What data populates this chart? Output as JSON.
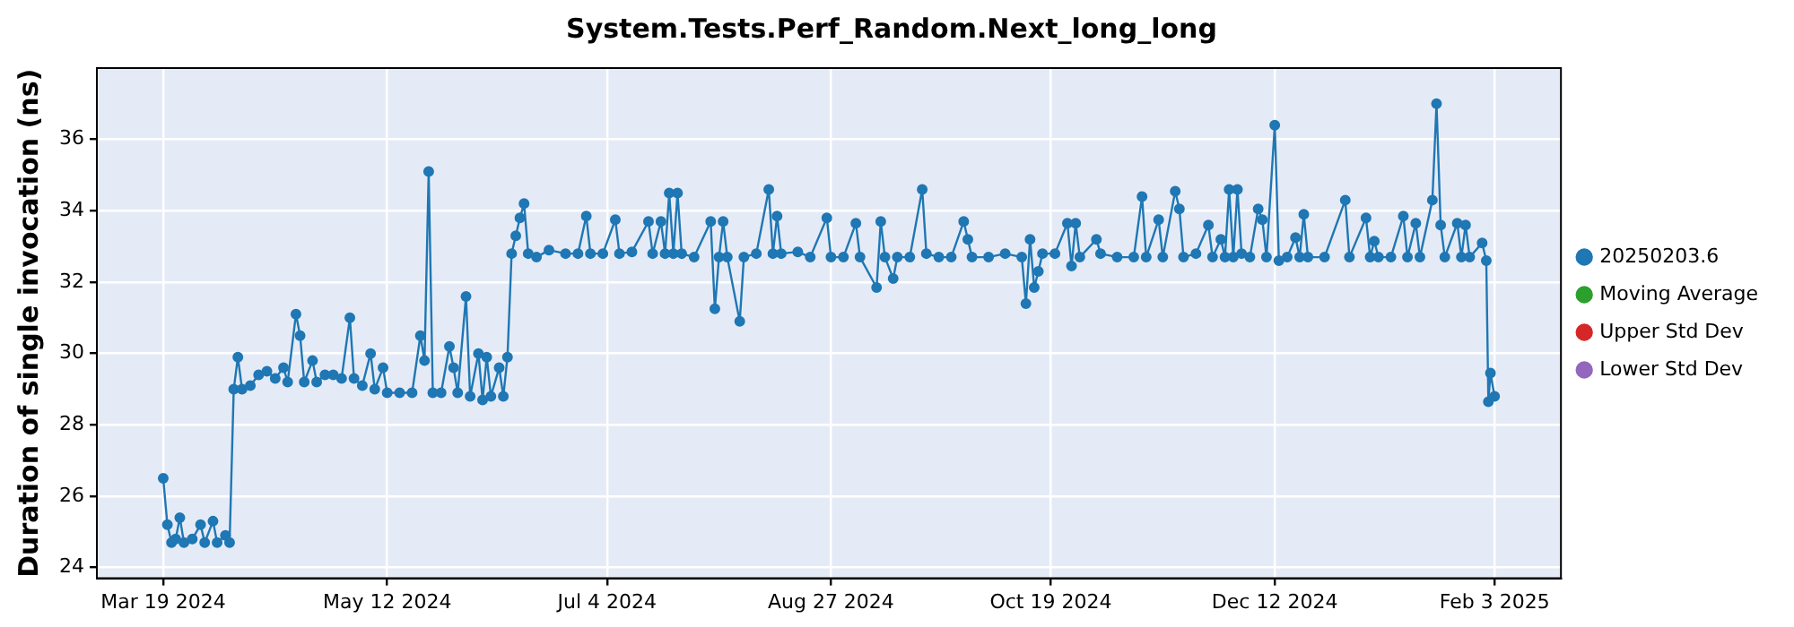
{
  "chart_data": {
    "type": "line",
    "title": "System.Tests.Perf_Random.Next_long_long",
    "ylabel": "Duration of single invocation (ns)",
    "xlim": [
      "2024-03-03",
      "2025-02-19"
    ],
    "xticks": [
      {
        "value": "2024-03-19",
        "label": "Mar 19 2024"
      },
      {
        "value": "2024-05-12",
        "label": "May 12 2024"
      },
      {
        "value": "2024-07-04",
        "label": "Jul 4 2024"
      },
      {
        "value": "2024-08-27",
        "label": "Aug 27 2024"
      },
      {
        "value": "2024-10-19",
        "label": "Oct 19 2024"
      },
      {
        "value": "2024-12-12",
        "label": "Dec 12 2024"
      },
      {
        "value": "2025-02-03",
        "label": "Feb 3 2025"
      }
    ],
    "ylim": [
      23.7,
      38
    ],
    "yticks": [
      24,
      26,
      28,
      30,
      32,
      34,
      36
    ],
    "grid": true,
    "legend": "right",
    "marker": "circle",
    "line_style": "solid",
    "series": [
      {
        "name": "20250203.6",
        "color": "#1f77b4",
        "x": [
          "2024-03-19",
          "2024-03-20",
          "2024-03-21",
          "2024-03-22",
          "2024-03-23",
          "2024-03-24",
          "2024-03-26",
          "2024-03-28",
          "2024-03-29",
          "2024-03-31",
          "2024-04-01",
          "2024-04-03",
          "2024-04-04",
          "2024-04-05",
          "2024-04-06",
          "2024-04-07",
          "2024-04-09",
          "2024-04-11",
          "2024-04-13",
          "2024-04-15",
          "2024-04-17",
          "2024-04-18",
          "2024-04-20",
          "2024-04-21",
          "2024-04-22",
          "2024-04-24",
          "2024-04-25",
          "2024-04-27",
          "2024-04-29",
          "2024-05-01",
          "2024-05-03",
          "2024-05-04",
          "2024-05-06",
          "2024-05-08",
          "2024-05-09",
          "2024-05-11",
          "2024-05-12",
          "2024-05-15",
          "2024-05-18",
          "2024-05-20",
          "2024-05-21",
          "2024-05-22",
          "2024-05-23",
          "2024-05-25",
          "2024-05-27",
          "2024-05-28",
          "2024-05-29",
          "2024-05-31",
          "2024-06-01",
          "2024-06-03",
          "2024-06-04",
          "2024-06-05",
          "2024-06-06",
          "2024-06-08",
          "2024-06-09",
          "2024-06-10",
          "2024-06-11",
          "2024-06-12",
          "2024-06-13",
          "2024-06-14",
          "2024-06-15",
          "2024-06-17",
          "2024-06-20",
          "2024-06-24",
          "2024-06-27",
          "2024-06-29",
          "2024-06-30",
          "2024-07-03",
          "2024-07-06",
          "2024-07-07",
          "2024-07-10",
          "2024-07-14",
          "2024-07-15",
          "2024-07-17",
          "2024-07-18",
          "2024-07-19",
          "2024-07-20",
          "2024-07-21",
          "2024-07-22",
          "2024-07-25",
          "2024-07-29",
          "2024-07-30",
          "2024-07-31",
          "2024-08-01",
          "2024-08-02",
          "2024-08-05",
          "2024-08-06",
          "2024-08-09",
          "2024-08-12",
          "2024-08-13",
          "2024-08-14",
          "2024-08-15",
          "2024-08-19",
          "2024-08-22",
          "2024-08-26",
          "2024-08-27",
          "2024-08-30",
          "2024-09-02",
          "2024-09-03",
          "2024-09-07",
          "2024-09-08",
          "2024-09-09",
          "2024-09-11",
          "2024-09-12",
          "2024-09-15",
          "2024-09-18",
          "2024-09-19",
          "2024-09-22",
          "2024-09-25",
          "2024-09-28",
          "2024-09-29",
          "2024-09-30",
          "2024-10-04",
          "2024-10-08",
          "2024-10-12",
          "2024-10-13",
          "2024-10-14",
          "2024-10-15",
          "2024-10-16",
          "2024-10-17",
          "2024-10-20",
          "2024-10-23",
          "2024-10-24",
          "2024-10-25",
          "2024-10-26",
          "2024-10-30",
          "2024-10-31",
          "2024-11-04",
          "2024-11-08",
          "2024-11-10",
          "2024-11-11",
          "2024-11-14",
          "2024-11-15",
          "2024-11-18",
          "2024-11-19",
          "2024-11-20",
          "2024-11-23",
          "2024-11-26",
          "2024-11-27",
          "2024-11-29",
          "2024-11-30",
          "2024-12-01",
          "2024-12-02",
          "2024-12-03",
          "2024-12-04",
          "2024-12-06",
          "2024-12-08",
          "2024-12-09",
          "2024-12-10",
          "2024-12-12",
          "2024-12-13",
          "2024-12-15",
          "2024-12-17",
          "2024-12-18",
          "2024-12-19",
          "2024-12-20",
          "2024-12-24",
          "2024-12-29",
          "2024-12-30",
          "2025-01-03",
          "2025-01-04",
          "2025-01-05",
          "2025-01-06",
          "2025-01-09",
          "2025-01-12",
          "2025-01-13",
          "2025-01-15",
          "2025-01-16",
          "2025-01-19",
          "2025-01-20",
          "2025-01-21",
          "2025-01-22",
          "2025-01-25",
          "2025-01-26",
          "2025-01-27",
          "2025-01-28",
          "2025-01-31",
          "2025-02-01",
          "2025-02-01T12:00",
          "2025-02-02",
          "2025-02-03"
        ],
        "values": [
          26.5,
          25.2,
          24.7,
          24.8,
          25.4,
          24.7,
          24.8,
          25.2,
          24.7,
          25.3,
          24.7,
          24.9,
          24.7,
          29.0,
          29.9,
          29.0,
          29.1,
          29.4,
          29.5,
          29.3,
          29.6,
          29.2,
          31.1,
          30.5,
          29.2,
          29.8,
          29.2,
          29.4,
          29.4,
          29.3,
          31.0,
          29.3,
          29.1,
          30.0,
          29.0,
          29.6,
          28.9,
          28.9,
          28.9,
          30.5,
          29.8,
          35.1,
          28.9,
          28.9,
          30.2,
          29.6,
          28.9,
          31.6,
          28.8,
          30.0,
          28.7,
          29.9,
          28.8,
          29.6,
          28.8,
          29.9,
          32.8,
          33.3,
          33.8,
          34.2,
          32.8,
          32.7,
          32.9,
          32.8,
          32.8,
          33.85,
          32.8,
          32.8,
          33.75,
          32.8,
          32.85,
          33.7,
          32.8,
          33.7,
          32.8,
          34.5,
          32.8,
          34.5,
          32.8,
          32.7,
          33.7,
          31.25,
          32.7,
          33.7,
          32.7,
          30.9,
          32.7,
          32.8,
          34.6,
          32.8,
          33.85,
          32.8,
          32.85,
          32.7,
          33.8,
          32.7,
          32.7,
          33.65,
          32.7,
          31.85,
          33.7,
          32.7,
          32.1,
          32.7,
          32.7,
          34.6,
          32.8,
          32.7,
          32.7,
          33.7,
          33.2,
          32.7,
          32.7,
          32.8,
          32.7,
          31.4,
          33.2,
          31.85,
          32.3,
          32.8,
          32.8,
          33.65,
          32.45,
          33.65,
          32.7,
          33.2,
          32.8,
          32.7,
          32.7,
          34.4,
          32.7,
          33.75,
          32.7,
          34.55,
          34.05,
          32.7,
          32.8,
          33.6,
          32.7,
          33.2,
          32.7,
          34.6,
          32.7,
          34.6,
          32.8,
          32.7,
          34.05,
          33.75,
          32.7,
          36.4,
          32.6,
          32.7,
          33.25,
          32.7,
          33.9,
          32.7,
          32.7,
          34.3,
          32.7,
          33.8,
          32.7,
          33.15,
          32.7,
          32.7,
          33.85,
          32.7,
          33.65,
          32.7,
          34.3,
          37.0,
          33.6,
          32.7,
          33.65,
          32.7,
          33.6,
          32.7,
          33.1,
          32.6,
          28.65,
          29.45,
          28.8
        ]
      },
      {
        "name": "Moving Average",
        "color": "#2ca02c"
      },
      {
        "name": "Upper Std Dev",
        "color": "#d62728"
      },
      {
        "name": "Lower Std Dev",
        "color": "#9467bd"
      }
    ]
  }
}
